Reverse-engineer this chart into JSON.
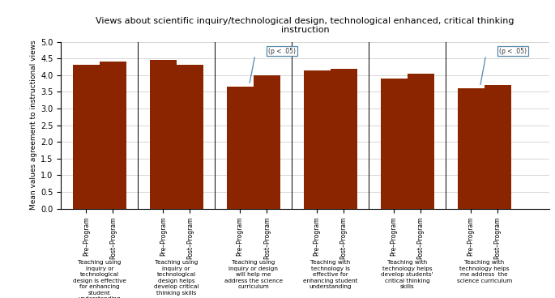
{
  "title": "Views about scientific inquiry/technological design, technological enhanced, critical thinking\ninstruction",
  "ylabel": "Mean values agreement to instructional views",
  "bar_color": "#8B2500",
  "ylim": [
    0,
    5
  ],
  "yticks": [
    0,
    0.5,
    1,
    1.5,
    2,
    2.5,
    3,
    3.5,
    4,
    4.5,
    5
  ],
  "groups": [
    {
      "label": "Teaching using\ninquiry or\ntechnological\ndesign is effective\nfor enhancing\nstudent\nunderstanding",
      "pre": 4.3,
      "post": 4.4,
      "annotation": null
    },
    {
      "label": "Teaching using\ninquiry or\ntechnological\ndesign helps\ndevelop critical\nthinking skills",
      "pre": 4.45,
      "post": 4.3,
      "annotation": null
    },
    {
      "label": "Teaching using\ninquiry or design\nwill help me\naddress the science\ncurriculum",
      "pre": 3.65,
      "post": 4.0,
      "annotation": "(p < .05)"
    },
    {
      "label": "Teaching with\ntechnology is\neffective for\nenhancing student\nunderstanding",
      "pre": 4.15,
      "post": 4.18,
      "annotation": null
    },
    {
      "label": "Teaching with\ntechnology helps\ndevelop students'\ncritical thinking\nskills",
      "pre": 3.9,
      "post": 4.05,
      "annotation": null
    },
    {
      "label": "Teaching with\ntechnology helps\nme address  the\nscience curriculum",
      "pre": 3.6,
      "post": 3.7,
      "annotation": "(p < .05)"
    }
  ],
  "background_color": "#ffffff",
  "grid_color": "#d0d0d0"
}
